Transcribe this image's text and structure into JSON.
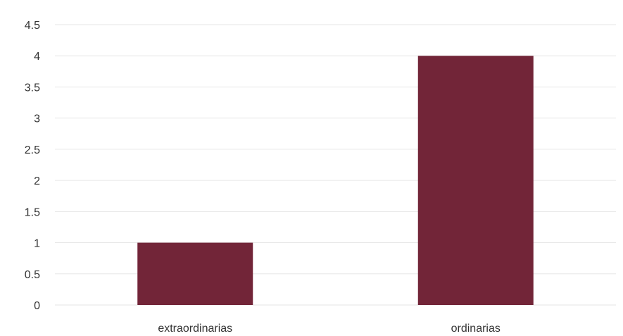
{
  "colors": {
    "bar": "#722538",
    "grid": "#e6e6e6",
    "text": "#333333"
  },
  "chart_data": {
    "type": "bar",
    "title": "",
    "xlabel": "",
    "ylabel": "",
    "categories": [
      "extraordinarias",
      "ordinarias"
    ],
    "values": [
      1,
      4
    ],
    "ylim": [
      0,
      4.5
    ],
    "yticks": [
      "0",
      "0.5",
      "1",
      "1.5",
      "2",
      "2.5",
      "3",
      "3.5",
      "4",
      "4.5"
    ],
    "grid": true,
    "legend": "none"
  }
}
